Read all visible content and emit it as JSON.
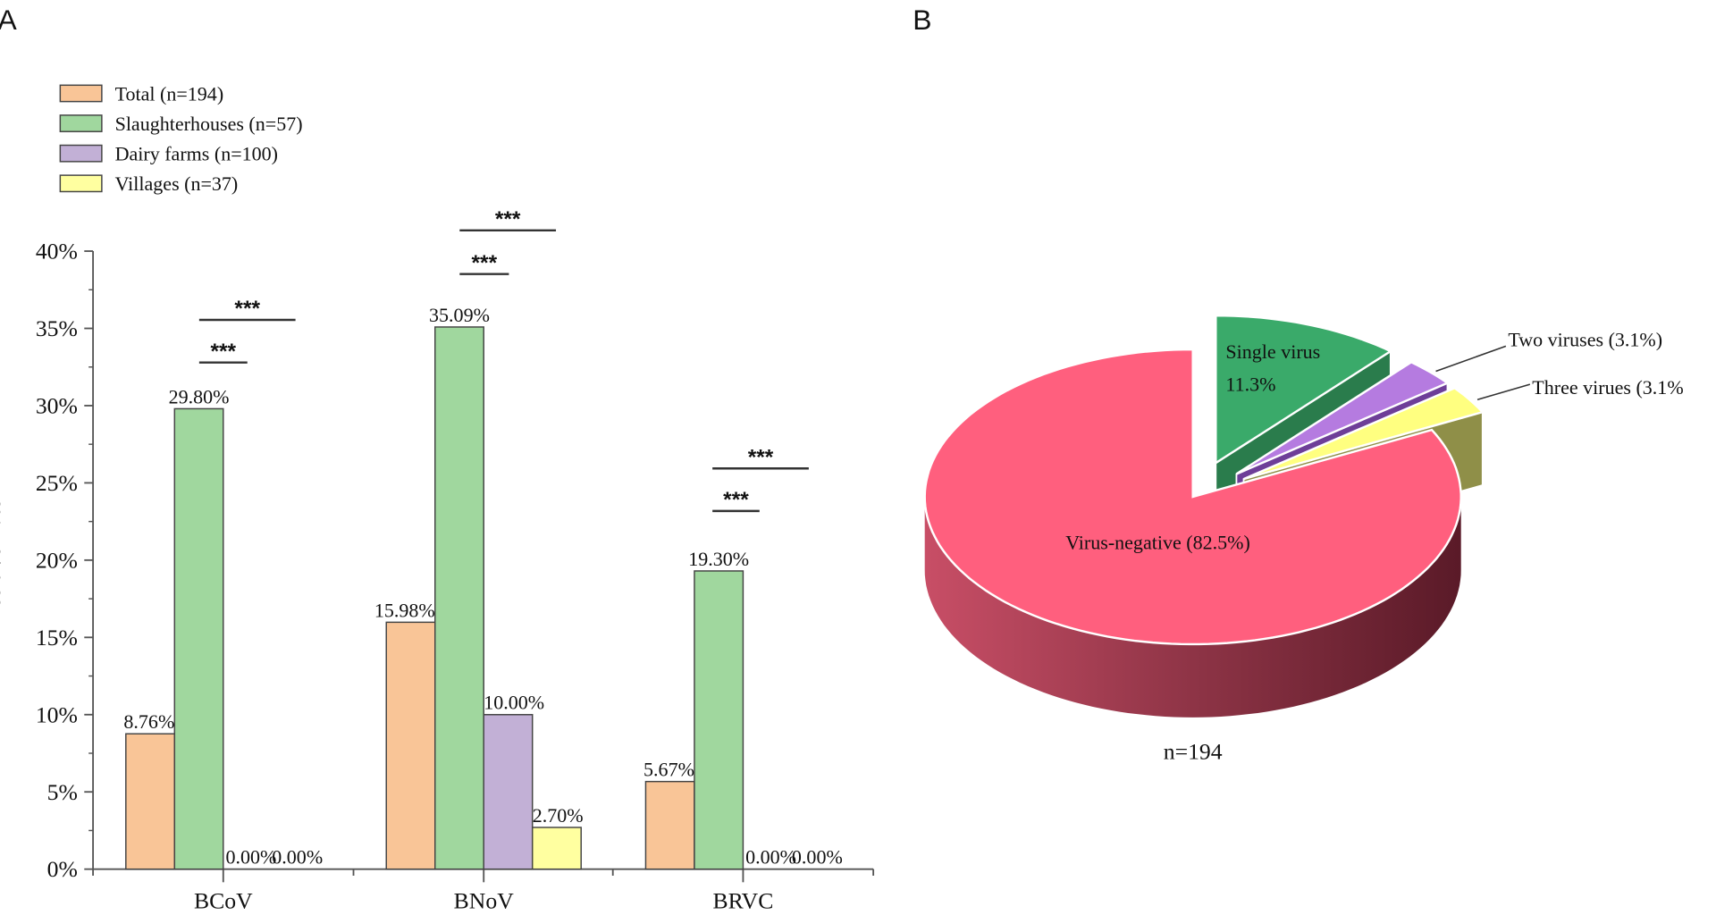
{
  "panels": {
    "a": "A",
    "b": "B"
  },
  "chart_data": [
    {
      "type": "bar",
      "ylabel": "Positive Rate",
      "ylim": [
        0,
        40
      ],
      "ytick_labels": [
        "0%",
        "5%",
        "10%",
        "15%",
        "20%",
        "25%",
        "30%",
        "35%",
        "40%"
      ],
      "categories": [
        "BCoV",
        "BNoV",
        "BRVC"
      ],
      "legend_position": "top-left",
      "series": [
        {
          "name": "Total (n=194)",
          "color": "#F9C597",
          "values": [
            8.76,
            15.98,
            5.67
          ],
          "labels": [
            "8.76%",
            "15.98%",
            "5.67%"
          ]
        },
        {
          "name": "Slaughterhouses (n=57)",
          "color": "#A0D79E",
          "values": [
            29.8,
            35.09,
            19.3
          ],
          "labels": [
            "29.80%",
            "35.09%",
            "19.30%"
          ]
        },
        {
          "name": "Dairy farms (n=100)",
          "color": "#C2B0D6",
          "values": [
            0.0,
            10.0,
            0.0
          ],
          "labels": [
            "0.00%",
            "10.00%",
            "0.00%"
          ]
        },
        {
          "name": "Villages (n=37)",
          "color": "#FFFFA0",
          "values": [
            0.0,
            2.7,
            0.0
          ],
          "labels": [
            "0.00%",
            "2.70%",
            "0.00%"
          ]
        }
      ],
      "significance": [
        {
          "category": "BCoV",
          "marks": [
            "***",
            "***"
          ]
        },
        {
          "category": "BNoV",
          "marks": [
            "***",
            "***"
          ]
        },
        {
          "category": "BRVC",
          "marks": [
            "***",
            "***"
          ]
        }
      ]
    },
    {
      "type": "pie",
      "style": "3d-exploded",
      "footer": "n=194",
      "slices": [
        {
          "label": "Virus-negative (82.5%)",
          "value": 82.5,
          "color": "#FF5F7E"
        },
        {
          "label": "Single virus",
          "label2": "11.3%",
          "value": 11.3,
          "color": "#3AAA6A"
        },
        {
          "label": "Two viruses (3.1%)",
          "value": 3.1,
          "color": "#B57BE0"
        },
        {
          "label": "Three virues (3.1%",
          "value": 3.1,
          "color": "#FFFF80"
        }
      ]
    }
  ]
}
